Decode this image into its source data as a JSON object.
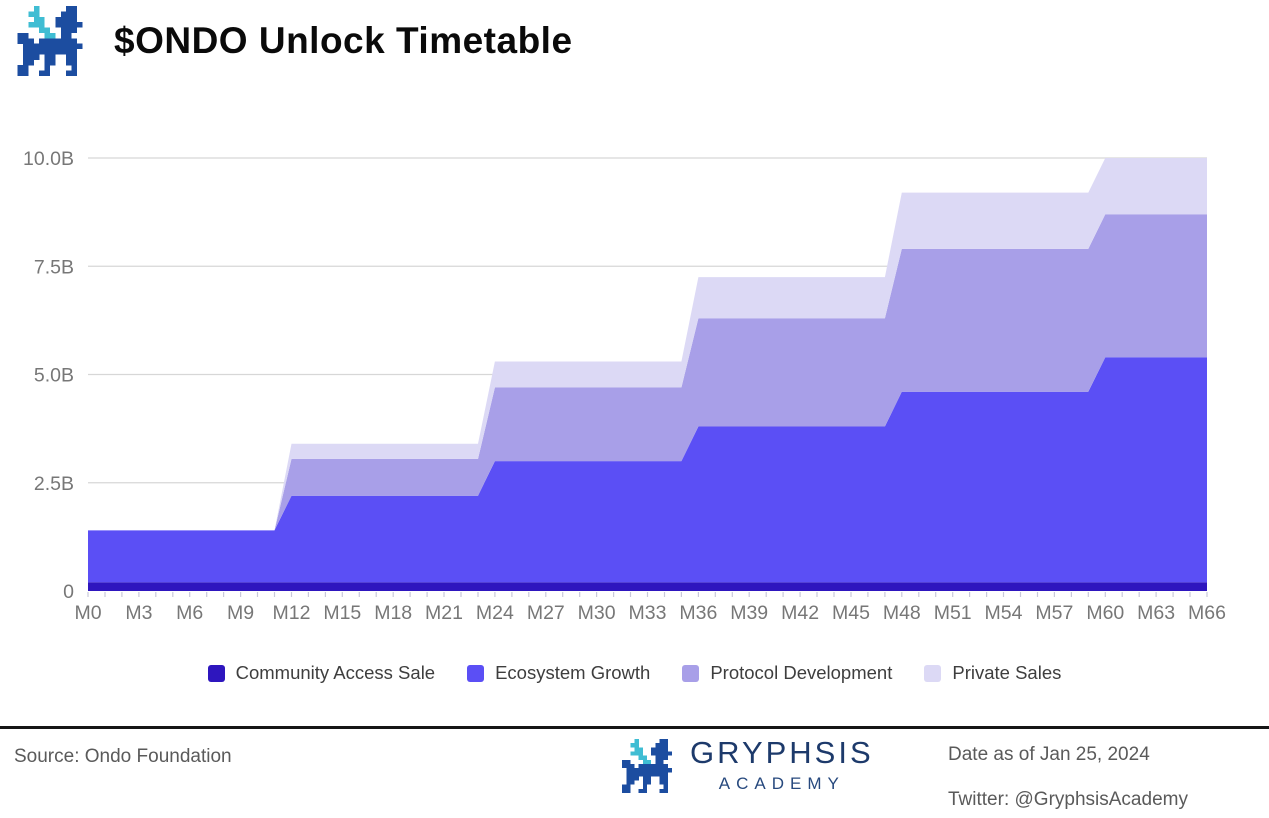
{
  "header": {
    "title": "$ONDO Unlock Timetable",
    "logo_icon": "pixel-dragon-icon"
  },
  "chart_data": {
    "type": "area",
    "stacked": true,
    "title": "$ONDO Unlock Timetable",
    "xlabel": "",
    "ylabel": "",
    "ylim": [
      0,
      10
    ],
    "grid": true,
    "legend_position": "bottom",
    "x_label_every": 3,
    "y_ticks": [
      {
        "value": 0,
        "label": "0"
      },
      {
        "value": 2.5,
        "label": "2.5B"
      },
      {
        "value": 5,
        "label": "5.0B"
      },
      {
        "value": 7.5,
        "label": "7.5B"
      },
      {
        "value": 10,
        "label": "10.0B"
      }
    ],
    "categories": [
      "M0",
      "M1",
      "M2",
      "M3",
      "M4",
      "M5",
      "M6",
      "M7",
      "M8",
      "M9",
      "M10",
      "M11",
      "M12",
      "M13",
      "M14",
      "M15",
      "M16",
      "M17",
      "M18",
      "M19",
      "M20",
      "M21",
      "M22",
      "M23",
      "M24",
      "M25",
      "M26",
      "M27",
      "M28",
      "M29",
      "M30",
      "M31",
      "M32",
      "M33",
      "M34",
      "M35",
      "M36",
      "M37",
      "M38",
      "M39",
      "M40",
      "M41",
      "M42",
      "M43",
      "M44",
      "M45",
      "M46",
      "M47",
      "M48",
      "M49",
      "M50",
      "M51",
      "M52",
      "M53",
      "M54",
      "M55",
      "M56",
      "M57",
      "M58",
      "M59",
      "M60",
      "M61",
      "M62",
      "M63",
      "M64",
      "M65",
      "M66"
    ],
    "series": [
      {
        "name": "Community Access Sale",
        "color": "#2E16BE",
        "values": [
          0.2,
          0.2,
          0.2,
          0.2,
          0.2,
          0.2,
          0.2,
          0.2,
          0.2,
          0.2,
          0.2,
          0.2,
          0.2,
          0.2,
          0.2,
          0.2,
          0.2,
          0.2,
          0.2,
          0.2,
          0.2,
          0.2,
          0.2,
          0.2,
          0.2,
          0.2,
          0.2,
          0.2,
          0.2,
          0.2,
          0.2,
          0.2,
          0.2,
          0.2,
          0.2,
          0.2,
          0.2,
          0.2,
          0.2,
          0.2,
          0.2,
          0.2,
          0.2,
          0.2,
          0.2,
          0.2,
          0.2,
          0.2,
          0.2,
          0.2,
          0.2,
          0.2,
          0.2,
          0.2,
          0.2,
          0.2,
          0.2,
          0.2,
          0.2,
          0.2,
          0.2,
          0.2,
          0.2,
          0.2,
          0.2,
          0.2,
          0.2
        ]
      },
      {
        "name": "Ecosystem Growth",
        "color": "#5B4FF5",
        "values": [
          1.2,
          1.2,
          1.2,
          1.2,
          1.2,
          1.2,
          1.2,
          1.2,
          1.2,
          1.2,
          1.2,
          1.2,
          2.0,
          2.0,
          2.0,
          2.0,
          2.0,
          2.0,
          2.0,
          2.0,
          2.0,
          2.0,
          2.0,
          2.0,
          2.8,
          2.8,
          2.8,
          2.8,
          2.8,
          2.8,
          2.8,
          2.8,
          2.8,
          2.8,
          2.8,
          2.8,
          3.6,
          3.6,
          3.6,
          3.6,
          3.6,
          3.6,
          3.6,
          3.6,
          3.6,
          3.6,
          3.6,
          3.6,
          4.4,
          4.4,
          4.4,
          4.4,
          4.4,
          4.4,
          4.4,
          4.4,
          4.4,
          4.4,
          4.4,
          4.4,
          5.2,
          5.2,
          5.2,
          5.2,
          5.2,
          5.2,
          5.2
        ]
      },
      {
        "name": "Protocol Development",
        "color": "#A89FE8",
        "values": [
          0,
          0,
          0,
          0,
          0,
          0,
          0,
          0,
          0,
          0,
          0,
          0,
          0.85,
          0.85,
          0.85,
          0.85,
          0.85,
          0.85,
          0.85,
          0.85,
          0.85,
          0.85,
          0.85,
          0.85,
          1.7,
          1.7,
          1.7,
          1.7,
          1.7,
          1.7,
          1.7,
          1.7,
          1.7,
          1.7,
          1.7,
          1.7,
          2.5,
          2.5,
          2.5,
          2.5,
          2.5,
          2.5,
          2.5,
          2.5,
          2.5,
          2.5,
          2.5,
          2.5,
          3.3,
          3.3,
          3.3,
          3.3,
          3.3,
          3.3,
          3.3,
          3.3,
          3.3,
          3.3,
          3.3,
          3.3,
          3.3,
          3.3,
          3.3,
          3.3,
          3.3,
          3.3,
          3.3
        ]
      },
      {
        "name": "Private Sales",
        "color": "#DCD9F5",
        "values": [
          0,
          0,
          0,
          0,
          0,
          0,
          0,
          0,
          0,
          0,
          0,
          0,
          0.35,
          0.35,
          0.35,
          0.35,
          0.35,
          0.35,
          0.35,
          0.35,
          0.35,
          0.35,
          0.35,
          0.35,
          0.6,
          0.6,
          0.6,
          0.6,
          0.6,
          0.6,
          0.6,
          0.6,
          0.6,
          0.6,
          0.6,
          0.6,
          0.95,
          0.95,
          0.95,
          0.95,
          0.95,
          0.95,
          0.95,
          0.95,
          0.95,
          0.95,
          0.95,
          0.95,
          1.3,
          1.3,
          1.3,
          1.3,
          1.3,
          1.3,
          1.3,
          1.3,
          1.3,
          1.3,
          1.3,
          1.3,
          1.3,
          1.3,
          1.3,
          1.3,
          1.3,
          1.3,
          1.3
        ]
      }
    ]
  },
  "footer": {
    "source": "Source: Ondo Foundation",
    "brand_name": "GRYPHSIS",
    "brand_sub": "ACADEMY",
    "brand_icon": "pixel-dragon-icon",
    "date": "Date as of Jan 25, 2024",
    "twitter": "Twitter: @GryphsisAcademy"
  },
  "colors": {
    "gridline": "#d7d7d7",
    "axis_text": "#777777",
    "month_tick": "#c9c9da",
    "logo_blue": "#1C4DA0",
    "logo_teal": "#3FBDD3",
    "brand_navy": "#1d3a6b"
  }
}
